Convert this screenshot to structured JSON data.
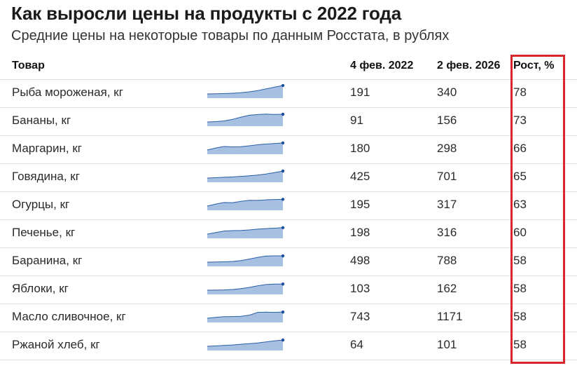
{
  "title": "Как выросли цены на продукты с 2022 года",
  "subtitle": "Средние цены на некоторые товары по данным Росстата, в рублях",
  "colors": {
    "sparkline_fill": "#a7bfe0",
    "sparkline_line": "#2a5fa8",
    "sparkline_dot": "#1f4f99",
    "highlight_border": "#d9262b"
  },
  "chart_data": {
    "type": "table",
    "columns": [
      "Товар",
      "4 фев. 2022",
      "2 фев. 2026",
      "Рост, %"
    ],
    "rows": [
      {
        "name": "Рыба мороженая, кг",
        "start": 191,
        "end": 340,
        "growth": 78,
        "trend": [
          191,
          193,
          197,
          203,
          212,
          228,
          250,
          280,
          310,
          340
        ]
      },
      {
        "name": "Бананы, кг",
        "start": 91,
        "end": 156,
        "growth": 73,
        "trend": [
          91,
          94,
          100,
          113,
          132,
          148,
          154,
          157,
          155,
          156
        ]
      },
      {
        "name": "Маргарин, кг",
        "start": 180,
        "end": 298,
        "growth": 66,
        "trend": [
          180,
          214,
          238,
          233,
          235,
          250,
          268,
          279,
          289,
          298
        ]
      },
      {
        "name": "Говядина, кг",
        "start": 425,
        "end": 701,
        "growth": 65,
        "trend": [
          425,
          440,
          455,
          470,
          490,
          515,
          545,
          585,
          640,
          701
        ]
      },
      {
        "name": "Огурцы, кг",
        "start": 195,
        "end": 317,
        "growth": 63,
        "trend": [
          195,
          232,
          260,
          257,
          280,
          300,
          298,
          308,
          314,
          317
        ]
      },
      {
        "name": "Печенье, кг",
        "start": 198,
        "end": 316,
        "growth": 60,
        "trend": [
          198,
          228,
          255,
          262,
          265,
          275,
          290,
          300,
          308,
          316
        ]
      },
      {
        "name": "Баранина, кг",
        "start": 498,
        "end": 788,
        "growth": 58,
        "trend": [
          498,
          505,
          515,
          530,
          570,
          640,
          720,
          780,
          790,
          788
        ]
      },
      {
        "name": "Яблоки, кг",
        "start": 103,
        "end": 162,
        "growth": 58,
        "trend": [
          103,
          104,
          106,
          110,
          118,
          130,
          145,
          157,
          161,
          162
        ]
      },
      {
        "name": "Масло сливочное, кг",
        "start": 743,
        "end": 1171,
        "growth": 58,
        "trend": [
          743,
          800,
          850,
          860,
          875,
          955,
          1150,
          1165,
          1150,
          1171
        ]
      },
      {
        "name": "Ржаной хлеб, кг",
        "start": 64,
        "end": 101,
        "growth": 58,
        "trend": [
          64,
          66,
          69,
          72,
          76,
          80,
          84,
          90,
          96,
          101
        ]
      }
    ]
  }
}
